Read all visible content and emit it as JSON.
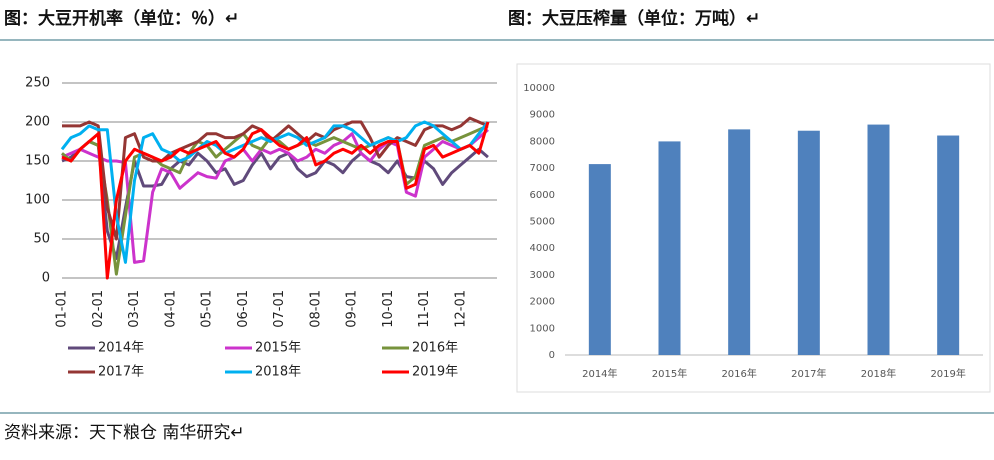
{
  "chart_data": [
    {
      "type": "line",
      "title": "图：大豆开机率（单位：％）↵",
      "categories": [
        "01-01",
        null,
        null,
        null,
        "02-01",
        null,
        null,
        null,
        "03-01",
        null,
        null,
        null,
        "04-01",
        null,
        null,
        null,
        "05-01",
        null,
        null,
        null,
        "06-01",
        null,
        null,
        null,
        "07-01",
        null,
        null,
        null,
        "08-01",
        null,
        null,
        null,
        "09-01",
        null,
        null,
        null,
        "10-01",
        null,
        null,
        null,
        "11-01",
        null,
        null,
        null,
        "12-01",
        null,
        null,
        null
      ],
      "ylim": [
        0,
        250
      ],
      "yticks": [
        0,
        50,
        100,
        150,
        200,
        250
      ],
      "grid": true,
      "series": [
        {
          "name": "2014年",
          "color": "#604a7b",
          "values": [
            150,
            155,
            165,
            175,
            170,
            60,
            25,
            90,
            150,
            118,
            118,
            120,
            140,
            150,
            145,
            160,
            150,
            135,
            140,
            120,
            125,
            145,
            160,
            140,
            155,
            160,
            140,
            130,
            135,
            150,
            145,
            135,
            150,
            160,
            150,
            145,
            135,
            150,
            130,
            128,
            150,
            140,
            120,
            135,
            145,
            155,
            165,
            155
          ]
        },
        {
          "name": "2015年",
          "color": "#cc33cc",
          "values": [
            155,
            160,
            165,
            160,
            155,
            150,
            150,
            148,
            20,
            22,
            110,
            140,
            135,
            115,
            125,
            135,
            130,
            128,
            150,
            155,
            165,
            150,
            165,
            160,
            165,
            160,
            150,
            155,
            165,
            160,
            170,
            175,
            185,
            160,
            150,
            165,
            175,
            170,
            110,
            105,
            155,
            165,
            175,
            170,
            165,
            170,
            180,
            190
          ]
        },
        {
          "name": "2016年",
          "color": "#77933c",
          "values": [
            160,
            150,
            165,
            175,
            170,
            100,
            5,
            80,
            155,
            160,
            155,
            145,
            140,
            135,
            160,
            175,
            170,
            155,
            165,
            175,
            185,
            170,
            165,
            180,
            175,
            165,
            170,
            175,
            170,
            175,
            180,
            175,
            170,
            165,
            170,
            175,
            180,
            175,
            120,
            130,
            170,
            175,
            180,
            175,
            180,
            185,
            190,
            195
          ]
        },
        {
          "name": "2017年",
          "color": "#943634",
          "values": [
            195,
            195,
            195,
            200,
            195,
            90,
            50,
            180,
            185,
            155,
            150,
            150,
            160,
            165,
            170,
            175,
            185,
            185,
            180,
            180,
            185,
            195,
            190,
            175,
            185,
            195,
            185,
            175,
            185,
            180,
            190,
            195,
            200,
            200,
            180,
            155,
            170,
            180,
            175,
            170,
            190,
            195,
            195,
            190,
            195,
            205,
            200,
            195
          ]
        },
        {
          "name": "2018年",
          "color": "#00b0f0",
          "values": [
            165,
            180,
            185,
            195,
            190,
            190,
            80,
            20,
            125,
            180,
            185,
            165,
            160,
            150,
            155,
            165,
            175,
            170,
            160,
            165,
            170,
            175,
            180,
            175,
            180,
            185,
            180,
            170,
            175,
            180,
            195,
            195,
            190,
            180,
            170,
            175,
            180,
            175,
            180,
            195,
            200,
            195,
            185,
            175,
            165,
            170,
            185,
            200
          ]
        },
        {
          "name": "2019年",
          "color": "#ff0000",
          "values": [
            155,
            150,
            165,
            175,
            185,
            0,
            100,
            150,
            165,
            160,
            155,
            150,
            155,
            165,
            160,
            165,
            170,
            175,
            160,
            155,
            165,
            185,
            190,
            180,
            170,
            165,
            170,
            180,
            145,
            150,
            160,
            165,
            160,
            170,
            160,
            170,
            175,
            175,
            115,
            120,
            165,
            170,
            155,
            160,
            165,
            170,
            160,
            200
          ]
        }
      ]
    },
    {
      "type": "bar",
      "title": "图：大豆压榨量（单位：万吨）↵",
      "categories": [
        "2014年",
        "2015年",
        "2016年",
        "2017年",
        "2018年",
        "2019年"
      ],
      "values": [
        7150,
        8000,
        8450,
        8400,
        8630,
        8220
      ],
      "color": "#4f81bd",
      "ylim": [
        0,
        10000
      ],
      "yticks": [
        0,
        1000,
        2000,
        3000,
        4000,
        5000,
        6000,
        7000,
        8000,
        9000,
        10000
      ],
      "grid": false
    }
  ],
  "source": "资料来源：天下粮仓  南华研究↵"
}
